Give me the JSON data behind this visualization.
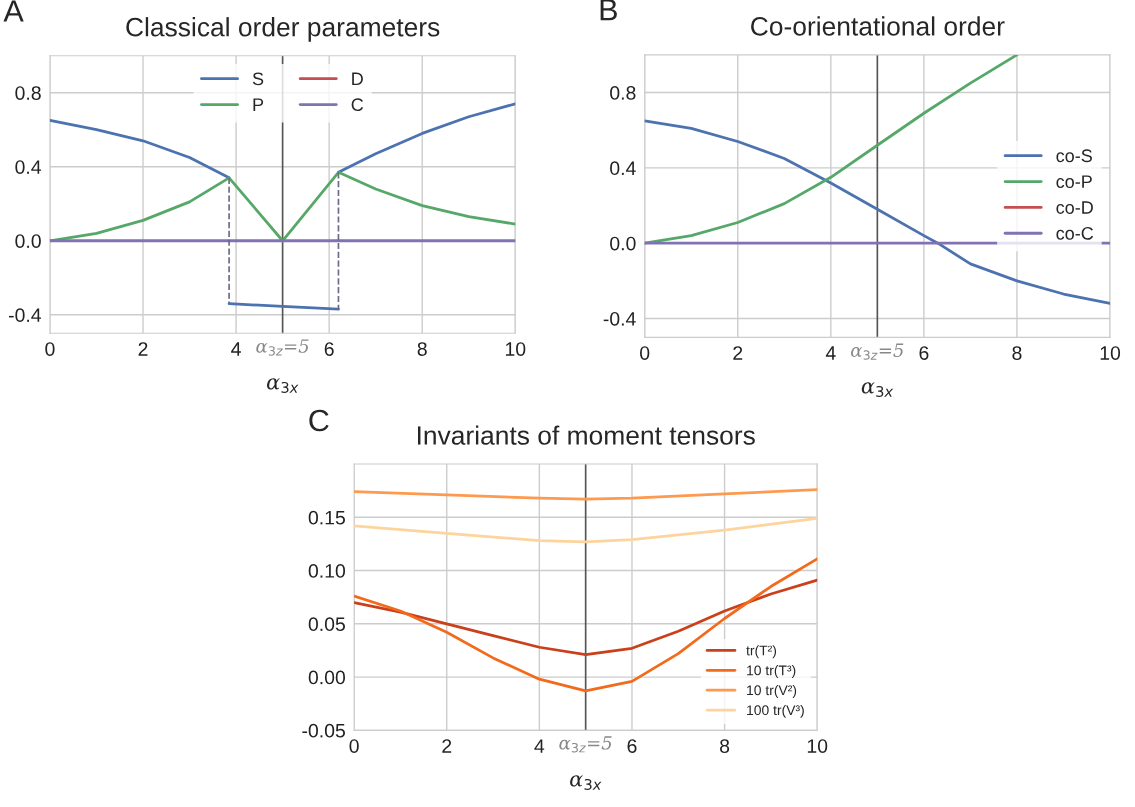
{
  "chart_data": [
    {
      "type": "line",
      "title": "Classical order parameters",
      "xlabel": "α$_{3x}$",
      "annotations": [
        "A"
      ],
      "xlim": [
        0,
        10
      ],
      "ylim": [
        -0.5,
        1.0
      ],
      "xticks": [
        0,
        2,
        4,
        6,
        8,
        10
      ],
      "yticks": [
        {
          "value": -0.4,
          "label": "-0.4"
        },
        {
          "value": 0.0,
          "label": "0.0"
        },
        {
          "value": 0.4,
          "label": "0.4"
        },
        {
          "value": 0.8,
          "label": "0.8"
        }
      ],
      "grid": true,
      "legend": "top",
      "ref_lines": [
        {
          "axis": "x",
          "value": 5,
          "label": "α$_{3z}$=5",
          "color": "#555555"
        }
      ],
      "series": [
        {
          "name": "S",
          "color": "#4c72b0",
          "x": [
            0,
            1,
            2,
            3,
            3.85
          ],
          "values": [
            0.65,
            0.6,
            0.54,
            0.45,
            0.34
          ]
        },
        {
          "color": "#4c72b0",
          "x": [
            3.85,
            5,
            6.2
          ],
          "values": [
            -0.34,
            -0.355,
            -0.37
          ]
        },
        {
          "color": "#4c72b0",
          "x": [
            6.2,
            7,
            8,
            9,
            10
          ],
          "values": [
            0.37,
            0.47,
            0.58,
            0.67,
            0.74
          ]
        },
        {
          "name": "P",
          "color": "#55a868",
          "x": [
            0,
            1,
            2,
            3,
            3.85,
            5,
            6.2,
            7,
            8,
            9,
            10
          ],
          "values": [
            0.0,
            0.04,
            0.11,
            0.21,
            0.34,
            0.0,
            0.37,
            0.28,
            0.19,
            0.13,
            0.09
          ]
        },
        {
          "name": "D",
          "color": "#c44e52",
          "values": [
            null
          ]
        },
        {
          "name": "C",
          "color": "#8172b2",
          "x": [
            0,
            10
          ],
          "values": [
            0.0,
            0.0
          ]
        },
        {
          "color": "#6a6a8a",
          "line_style": "dashed",
          "x": [
            3.85,
            3.85
          ],
          "values": [
            0.34,
            -0.34
          ]
        },
        {
          "color": "#6a6a8a",
          "line_style": "dashed",
          "x": [
            6.2,
            6.2
          ],
          "values": [
            0.37,
            -0.37
          ]
        }
      ]
    },
    {
      "type": "line",
      "title": "Co-orientational order",
      "xlabel": "α$_{3x}$",
      "annotations": [
        "B"
      ],
      "xlim": [
        0,
        10
      ],
      "ylim": [
        -0.5,
        1.0
      ],
      "xticks": [
        0,
        2,
        4,
        6,
        8,
        10
      ],
      "yticks": [
        {
          "value": -0.4,
          "label": "-0.4"
        },
        {
          "value": 0.0,
          "label": "0.0"
        },
        {
          "value": 0.4,
          "label": "0.4"
        },
        {
          "value": 0.8,
          "label": "0.8"
        }
      ],
      "grid": true,
      "legend": "right",
      "ref_lines": [
        {
          "axis": "x",
          "value": 5,
          "label": "α$_{3z}$=5",
          "color": "#555555"
        }
      ],
      "series": [
        {
          "name": "co-S",
          "color": "#4c72b0",
          "x": [
            0,
            1,
            2,
            3,
            4,
            5,
            6,
            6.3,
            7,
            8,
            9,
            10
          ],
          "values": [
            0.65,
            0.61,
            0.54,
            0.45,
            0.32,
            0.18,
            0.04,
            0.0,
            -0.11,
            -0.2,
            -0.27,
            -0.32
          ]
        },
        {
          "name": "co-P",
          "color": "#55a868",
          "x": [
            0,
            1,
            2,
            3,
            4,
            5,
            6,
            7,
            8
          ],
          "values": [
            0.0,
            0.04,
            0.11,
            0.21,
            0.35,
            0.52,
            0.69,
            0.85,
            1.0
          ]
        },
        {
          "name": "co-D",
          "color": "#c44e52",
          "values": [
            null
          ]
        },
        {
          "name": "co-C",
          "color": "#8172b2",
          "x": [
            0,
            10
          ],
          "values": [
            0.0,
            0.0
          ]
        }
      ]
    },
    {
      "type": "line",
      "title": "Invariants of moment tensors",
      "xlabel": "α$_{3x}$",
      "annotations": [
        "C"
      ],
      "xlim": [
        0,
        10
      ],
      "ylim": [
        -0.05,
        0.2
      ],
      "xticks": [
        0,
        2,
        4,
        6,
        8,
        10
      ],
      "yticks": [
        {
          "value": -0.05,
          "label": "-0.05"
        },
        {
          "value": 0.0,
          "label": "0.00"
        },
        {
          "value": 0.05,
          "label": "0.05"
        },
        {
          "value": 0.1,
          "label": "0.10"
        },
        {
          "value": 0.15,
          "label": "0.15"
        }
      ],
      "grid": true,
      "legend": "bottom right",
      "ref_lines": [
        {
          "axis": "x",
          "value": 5,
          "label": "α$_{3z}$=5",
          "color": "#555555"
        }
      ],
      "series": [
        {
          "name": "tr(T²)",
          "color": "#c9401a",
          "x": [
            0,
            1,
            2,
            3,
            4,
            5,
            6,
            7,
            8,
            9,
            10
          ],
          "values": [
            0.07,
            0.061,
            0.05,
            0.039,
            0.028,
            0.021,
            0.027,
            0.043,
            0.062,
            0.078,
            0.091
          ]
        },
        {
          "name": "10 tr(T³)",
          "color": "#f26b1d",
          "x": [
            0,
            1,
            2,
            3,
            4,
            5,
            6,
            7,
            8,
            9,
            10
          ],
          "values": [
            0.076,
            0.062,
            0.042,
            0.018,
            -0.002,
            -0.013,
            -0.004,
            0.022,
            0.055,
            0.085,
            0.111
          ]
        },
        {
          "name": "10 tr(V²)",
          "color": "#fd9a4f",
          "x": [
            0,
            2,
            4,
            5,
            6,
            8,
            10
          ],
          "values": [
            0.174,
            0.171,
            0.168,
            0.167,
            0.168,
            0.172,
            0.176
          ]
        },
        {
          "name": "100 tr(V³)",
          "color": "#fdd49e",
          "x": [
            0,
            2,
            4,
            5,
            6,
            8,
            10
          ],
          "values": [
            0.142,
            0.135,
            0.128,
            0.127,
            0.129,
            0.138,
            0.149
          ]
        }
      ]
    }
  ]
}
